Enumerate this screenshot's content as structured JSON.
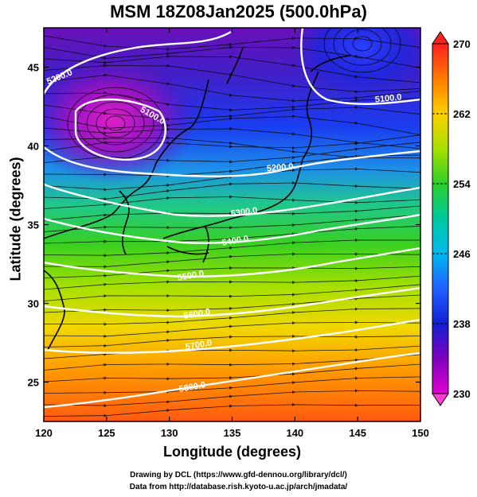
{
  "title": "MSM 18Z08Jan2025 (500.0hPa)",
  "xlabel": "Longitude (degrees)",
  "ylabel": "Latitude  (degrees)",
  "credits": [
    "Drawing by DCL (https://www.gfd-dennou.org/library/dcl/)",
    "Data from http://database.rish.kyoto-u.ac.jp/arch/jmadata/"
  ],
  "map": {
    "x_ticks": [
      "120",
      "125",
      "130",
      "135",
      "140",
      "145",
      "150"
    ],
    "y_ticks": [
      "25",
      "30",
      "35",
      "40",
      "45"
    ],
    "lon_range": [
      120,
      150
    ],
    "lat_range": [
      22.5,
      47.5
    ]
  },
  "colorbar": {
    "ticks": [
      "270",
      "262",
      "254",
      "246",
      "238",
      "230"
    ],
    "range": [
      230,
      270
    ],
    "colors": [
      "#ff2020",
      "#ff7a00",
      "#ffd000",
      "#a8e000",
      "#2ad02a",
      "#00c8a0",
      "#00b8f0",
      "#2060ff",
      "#1020d0",
      "#8000c0",
      "#e000d0"
    ]
  },
  "contours": [
    {
      "label": "5200.0"
    },
    {
      "label": "5100.0"
    },
    {
      "label": "5100.0"
    },
    {
      "label": "5200.0"
    },
    {
      "label": "5300.0"
    },
    {
      "label": "5400.0"
    },
    {
      "label": "5500.0"
    },
    {
      "label": "5600.0"
    },
    {
      "label": "5700.0"
    },
    {
      "label": "5800.0"
    }
  ]
}
